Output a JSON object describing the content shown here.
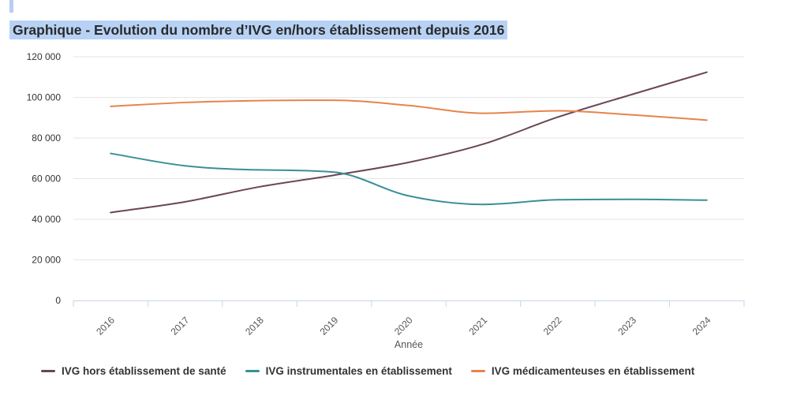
{
  "header": {
    "title": "Graphique - Evolution du nombre d’IVG en/hors établissement depuis 2016"
  },
  "chart_data": {
    "type": "line",
    "title": "Graphique - Evolution du nombre d’IVG en/hors établissement depuis 2016",
    "xlabel": "Année",
    "ylabel": "",
    "categories": [
      "2016",
      "2017",
      "2018",
      "2019",
      "2020",
      "2021",
      "2022",
      "2023",
      "2024"
    ],
    "ylim": [
      0,
      120000
    ],
    "yticks": [
      0,
      20000,
      40000,
      60000,
      80000,
      100000,
      120000
    ],
    "ytick_labels": [
      "0",
      "20 000",
      "40 000",
      "60 000",
      "80 000",
      "100 000",
      "120 000"
    ],
    "grid": true,
    "legend_position": "bottom",
    "series": [
      {
        "name": "IVG hors établissement de santé",
        "color": "#6b4655",
        "values": [
          43300,
          48600,
          56000,
          61700,
          68000,
          77000,
          90300,
          101500,
          112400
        ]
      },
      {
        "name": "IVG instrumentales en établissement",
        "color": "#3a8f96",
        "values": [
          72400,
          66300,
          64300,
          63200,
          51500,
          47300,
          49600,
          49800,
          49400
        ]
      },
      {
        "name": "IVG médicamenteuses en établissement",
        "color": "#e8834a",
        "values": [
          95600,
          97500,
          98400,
          98600,
          96000,
          92200,
          93400,
          91400,
          88800
        ]
      }
    ]
  }
}
